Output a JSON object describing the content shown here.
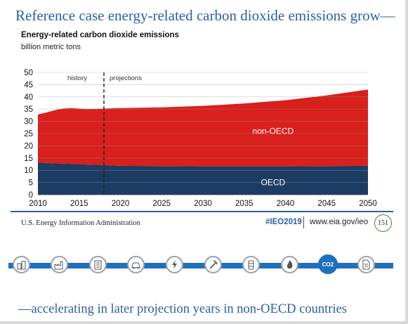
{
  "slide": {
    "title": "Reference case energy-related carbon dioxide emissions grow—",
    "bottom_text": "—accelerating in later projection years in non-OECD countries"
  },
  "footer": {
    "org": "U.S. Energy Information Administration",
    "tag": "#IEO2019",
    "url": "www.eia.gov/ieo",
    "page_number": "151"
  },
  "timeline": {
    "icons": [
      "buildings-icon",
      "industry-icon",
      "office-icon",
      "car-icon",
      "electricity-icon",
      "mining-tools-icon",
      "oil-barrel-icon",
      "natural-gas-flame-icon",
      "co2-icon",
      "document-icon"
    ],
    "active_index": 8,
    "active_label": "CO2"
  },
  "colors": {
    "title_blue": "#2a5fa5",
    "oecd": "#1c3c64",
    "non_oecd": "#d8201c",
    "timeline_blue": "#1f6fbf"
  },
  "chart_data": {
    "type": "area",
    "stacked": true,
    "title": "Energy-related carbon dioxide emissions",
    "subtitle": "billion metric tons",
    "x_ticks": [
      2010,
      2015,
      2020,
      2025,
      2030,
      2035,
      2040,
      2045,
      2050
    ],
    "y_ticks": [
      0,
      5,
      10,
      15,
      20,
      25,
      30,
      35,
      40,
      45,
      50
    ],
    "xlim": [
      2010,
      2050
    ],
    "ylim": [
      0,
      50
    ],
    "grid": "horizontal",
    "phase_labels": [
      "history",
      "projections"
    ],
    "phase_divider_x": 2018,
    "x": [
      2010,
      2011,
      2012,
      2013,
      2014,
      2015,
      2016,
      2017,
      2018,
      2020,
      2025,
      2030,
      2035,
      2040,
      2045,
      2050
    ],
    "series": [
      {
        "name": "OECD",
        "color": "#1c3c64",
        "values": [
          13.1,
          13.0,
          12.8,
          12.7,
          12.6,
          12.5,
          12.3,
          12.2,
          12.1,
          11.8,
          11.7,
          11.6,
          11.6,
          11.6,
          11.7,
          11.8
        ]
      },
      {
        "name": "non-OECD",
        "color": "#d8201c",
        "values": [
          19.7,
          20.6,
          21.7,
          22.5,
          22.8,
          22.7,
          22.7,
          22.9,
          23.1,
          23.6,
          24.0,
          24.7,
          25.7,
          27.0,
          28.9,
          31.2
        ]
      }
    ]
  }
}
